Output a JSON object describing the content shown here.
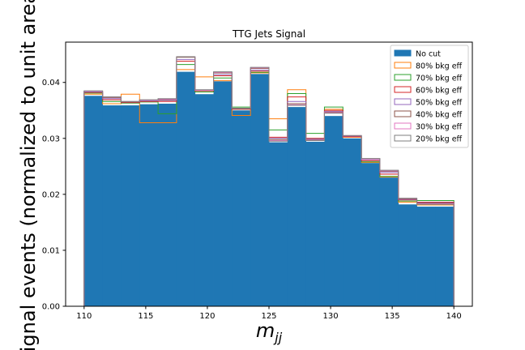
{
  "chart_data": {
    "type": "histogram-step",
    "title": "TTG Jets Signal",
    "xlabel": "m",
    "xlabel_sub": "jj",
    "ylabel": "Signal events (normalized to unit area)",
    "xlim": [
      108.5,
      141.5
    ],
    "ylim": [
      0,
      0.0472
    ],
    "xticks": [
      110,
      115,
      120,
      125,
      130,
      135,
      140
    ],
    "yticks": [
      0.0,
      0.01,
      0.02,
      0.03,
      0.04
    ],
    "ytick_labels": [
      "0.00",
      "0.01",
      "0.02",
      "0.03",
      "0.04"
    ],
    "legend_position": "upper right",
    "bin_edges": [
      110,
      111.5,
      113,
      114.5,
      116,
      117.5,
      119,
      120.5,
      122,
      123.5,
      125,
      126.5,
      128,
      129.5,
      131,
      132.5,
      134,
      135.5,
      137,
      138.5,
      140
    ],
    "filled": {
      "name": "No cut",
      "color": "#1f77b4",
      "values": [
        0.0376,
        0.0359,
        0.0359,
        0.0361,
        0.0362,
        0.0419,
        0.0379,
        0.0402,
        0.035,
        0.0415,
        0.0293,
        0.0356,
        0.0294,
        0.034,
        0.03,
        0.0256,
        0.023,
        0.0182,
        0.0178,
        0.0178
      ]
    },
    "series": [
      {
        "name": "80% bkg eff",
        "color": "#ff7f0e",
        "values": [
          0.0379,
          0.0362,
          0.0379,
          0.0328,
          0.0328,
          0.0423,
          0.041,
          0.0403,
          0.0341,
          0.0417,
          0.0335,
          0.0387,
          0.0296,
          0.0352,
          0.0302,
          0.0257,
          0.0231,
          0.0186,
          0.0181,
          0.0181
        ]
      },
      {
        "name": "70% bkg eff",
        "color": "#2ca02c",
        "values": [
          0.0381,
          0.0366,
          0.0363,
          0.0365,
          0.0344,
          0.0432,
          0.0383,
          0.0408,
          0.0356,
          0.0418,
          0.0315,
          0.038,
          0.0309,
          0.0356,
          0.0304,
          0.0258,
          0.0232,
          0.0188,
          0.0189,
          0.0189
        ]
      },
      {
        "name": "60% bkg eff",
        "color": "#d62728",
        "values": [
          0.0382,
          0.0369,
          0.0364,
          0.0366,
          0.0366,
          0.0438,
          0.0385,
          0.0412,
          0.0352,
          0.042,
          0.0302,
          0.0374,
          0.03,
          0.035,
          0.0303,
          0.026,
          0.0236,
          0.019,
          0.0186,
          0.0186
        ]
      },
      {
        "name": "50% bkg eff",
        "color": "#9467bd",
        "values": [
          0.0383,
          0.0371,
          0.0365,
          0.0367,
          0.0368,
          0.0441,
          0.0386,
          0.0414,
          0.0353,
          0.0422,
          0.03,
          0.0366,
          0.0299,
          0.0348,
          0.0304,
          0.0262,
          0.0239,
          0.0191,
          0.0185,
          0.0185
        ]
      },
      {
        "name": "40% bkg eff",
        "color": "#8c564b",
        "values": [
          0.0384,
          0.0373,
          0.0365,
          0.0368,
          0.0369,
          0.0445,
          0.0386,
          0.0417,
          0.0353,
          0.0425,
          0.0298,
          0.0362,
          0.0298,
          0.0347,
          0.0305,
          0.0263,
          0.0241,
          0.0192,
          0.0184,
          0.0184
        ]
      },
      {
        "name": "30% bkg eff",
        "color": "#e377c2",
        "values": [
          0.0384,
          0.0374,
          0.0366,
          0.0368,
          0.037,
          0.0446,
          0.0386,
          0.0418,
          0.0354,
          0.0426,
          0.0296,
          0.036,
          0.0297,
          0.0346,
          0.0305,
          0.0263,
          0.0242,
          0.0193,
          0.0183,
          0.0183
        ]
      },
      {
        "name": "20% bkg eff",
        "color": "#7f7f7f",
        "values": [
          0.0385,
          0.0374,
          0.0366,
          0.0369,
          0.0371,
          0.0446,
          0.0387,
          0.0419,
          0.0354,
          0.0427,
          0.0295,
          0.0359,
          0.0296,
          0.0345,
          0.0305,
          0.0264,
          0.0243,
          0.0193,
          0.0182,
          0.0182
        ]
      }
    ]
  }
}
